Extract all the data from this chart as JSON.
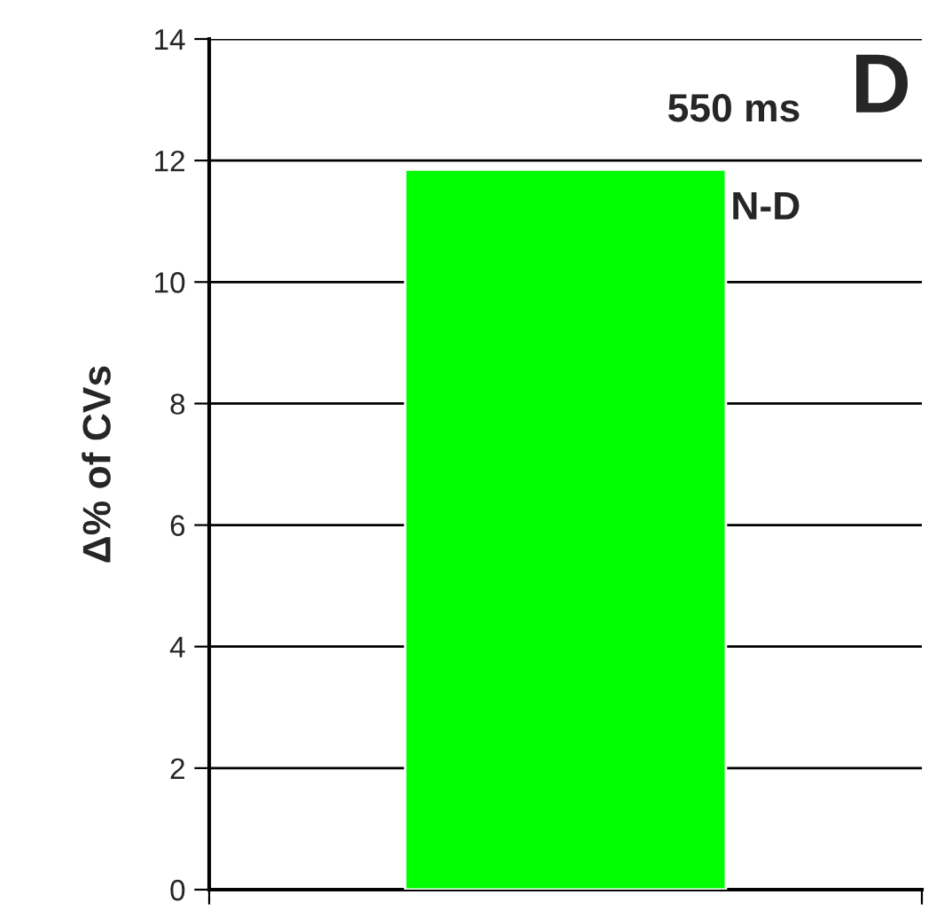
{
  "chart_data": {
    "type": "bar",
    "ylabel": "Δ% of CVs",
    "categories": [
      null
    ],
    "values": [
      11.85
    ],
    "color": "#00ff00",
    "ylim": [
      0,
      14
    ],
    "yticks": [
      0,
      2,
      4,
      6,
      8,
      10,
      12,
      14
    ],
    "grid": "y",
    "annotations": [
      "D",
      "550 ms",
      "N-D"
    ]
  }
}
